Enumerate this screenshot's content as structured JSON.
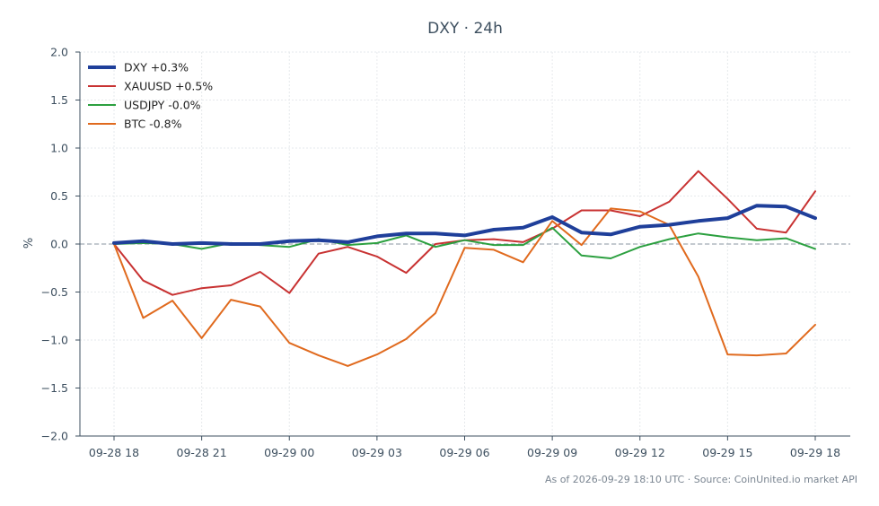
{
  "chart_data": {
    "type": "line",
    "title": "DXY · 24h",
    "xlabel": "",
    "ylabel": "%",
    "x_tick_labels": [
      "09-28 18",
      "09-28 21",
      "09-29 00",
      "09-29 03",
      "09-29 06",
      "09-29 09",
      "09-29 12",
      "09-29 15",
      "09-29 18"
    ],
    "y_tick_labels": [
      "2.0",
      "1.5",
      "1.0",
      "0.5",
      "0.0",
      "−0.5",
      "−1.0",
      "−1.5",
      "−2.0"
    ],
    "ylim": [
      -2.0,
      2.0
    ],
    "yticks": [
      2.0,
      1.5,
      1.0,
      0.5,
      0.0,
      -0.5,
      -1.0,
      -1.5,
      -2.0
    ],
    "grid": true,
    "zero_line": true,
    "legend_position": "top-left",
    "x_hours": [
      0,
      1,
      2,
      3,
      4,
      5,
      6,
      7,
      8,
      9,
      10,
      11,
      12,
      13,
      14,
      15,
      16,
      17,
      18,
      19,
      20,
      21,
      22,
      23,
      24
    ],
    "series": [
      {
        "name": "DXY +0.3%",
        "color": "#1f3f9a",
        "width": 4,
        "values": [
          0.01,
          0.03,
          0.0,
          0.01,
          0.0,
          0.0,
          0.03,
          0.04,
          0.02,
          0.08,
          0.11,
          0.11,
          0.09,
          0.15,
          0.17,
          0.28,
          0.12,
          0.1,
          0.18,
          0.2,
          0.24,
          0.27,
          0.4,
          0.39,
          0.27
        ]
      },
      {
        "name": "XAUUSD +0.5%",
        "color": "#c83232",
        "width": 2,
        "values": [
          0.0,
          -0.38,
          -0.53,
          -0.46,
          -0.43,
          -0.29,
          -0.51,
          -0.1,
          -0.03,
          -0.13,
          -0.3,
          0.0,
          0.04,
          0.05,
          0.02,
          0.16,
          0.35,
          0.35,
          0.29,
          0.44,
          0.76,
          0.47,
          0.16,
          0.12,
          0.55
        ]
      },
      {
        "name": "USDJPY -0.0%",
        "color": "#2ca040",
        "width": 2,
        "values": [
          0.0,
          0.01,
          0.0,
          -0.05,
          0.01,
          -0.01,
          -0.03,
          0.05,
          -0.01,
          0.01,
          0.09,
          -0.03,
          0.04,
          -0.01,
          -0.01,
          0.17,
          -0.12,
          -0.15,
          -0.03,
          0.05,
          0.11,
          0.07,
          0.04,
          0.06,
          -0.05
        ]
      },
      {
        "name": "BTC -0.8%",
        "color": "#e06a1e",
        "width": 2,
        "values": [
          0.0,
          -0.77,
          -0.59,
          -0.98,
          -0.58,
          -0.65,
          -1.03,
          -1.16,
          -1.27,
          -1.15,
          -0.99,
          -0.72,
          -0.04,
          -0.06,
          -0.19,
          0.24,
          -0.01,
          0.37,
          0.34,
          0.2,
          -0.34,
          -1.15,
          -1.16,
          -1.14,
          -0.84
        ]
      }
    ],
    "footer": "As of 2026-09-29 18:10 UTC · Source: CoinUnited.io market API"
  }
}
